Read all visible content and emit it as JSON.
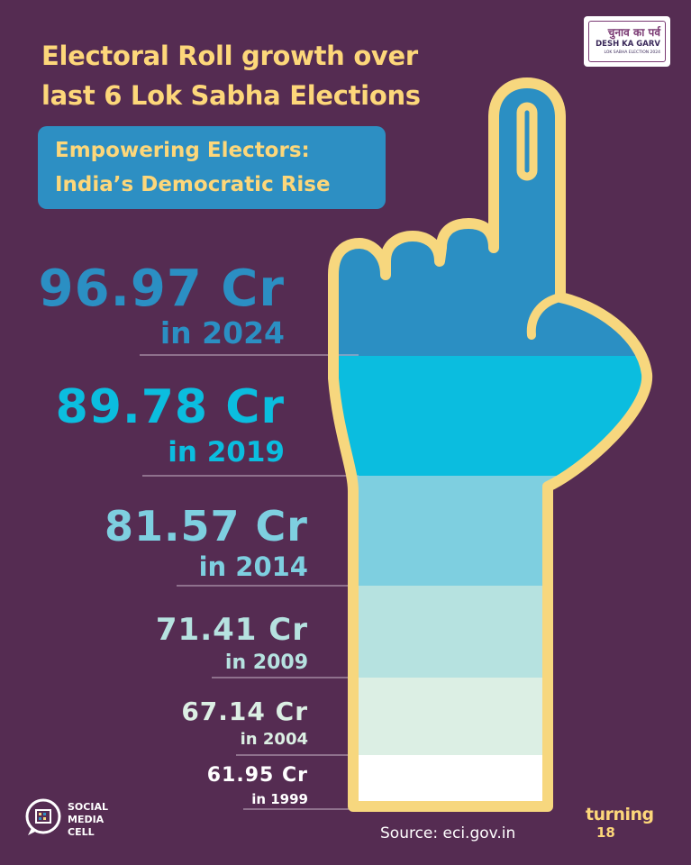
{
  "title_lines": [
    "Electoral Roll growth over",
    "last 6 Lok Sabha Elections"
  ],
  "subtitle_lines": [
    "Empowering Electors:",
    "India’s Democratic Rise"
  ],
  "logo": {
    "hindi": "चुनाव का पर्व",
    "main": "DESH KA GARV",
    "sub": "LOK SABHA ELECTION 2024"
  },
  "chart_data": {
    "type": "bar",
    "categories": [
      "2024",
      "2019",
      "2014",
      "2009",
      "2004",
      "1999"
    ],
    "values": [
      96.97,
      89.78,
      81.57,
      71.41,
      67.14,
      61.95
    ],
    "value_labels": [
      "96.97 Cr",
      "89.78 Cr",
      "81.57 Cr",
      "71.41 Cr",
      "67.14 Cr",
      "61.95 Cr"
    ],
    "year_labels": [
      "in 2024",
      "in 2019",
      "in 2014",
      "in 2009",
      "in 2004",
      "in 1999"
    ],
    "unit": "Cr",
    "colors": [
      "#2b8fc3",
      "#0bbddf",
      "#7ecfe0",
      "#b6e2e0",
      "#dcefe4",
      "#ffffff"
    ],
    "label_colors": [
      "#2b8fc3",
      "#0bbddf",
      "#7ecfe0",
      "#b6e2e0",
      "#dcefe4",
      "#ffffff"
    ]
  },
  "colors": {
    "background": "#552c52",
    "accent_yellow": "#fdd77a",
    "outline": "#f7d77e"
  },
  "footer": {
    "cell_lines": [
      "SOCIAL",
      "MEDIA",
      "CELL"
    ],
    "source": "Source: eci.gov.in",
    "turning_word": "turning",
    "turning_number": "18"
  }
}
